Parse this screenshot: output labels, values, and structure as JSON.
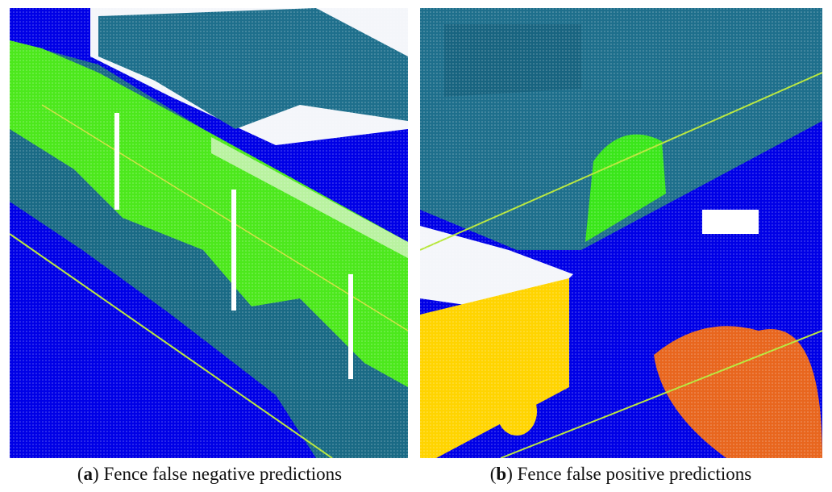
{
  "figure": {
    "panels": [
      {
        "caption_parts": [
          "(",
          "a",
          ") Fence false negative predictions"
        ]
      },
      {
        "caption_parts": [
          "(",
          "b",
          ") Fence false positive predictions"
        ]
      }
    ]
  }
}
